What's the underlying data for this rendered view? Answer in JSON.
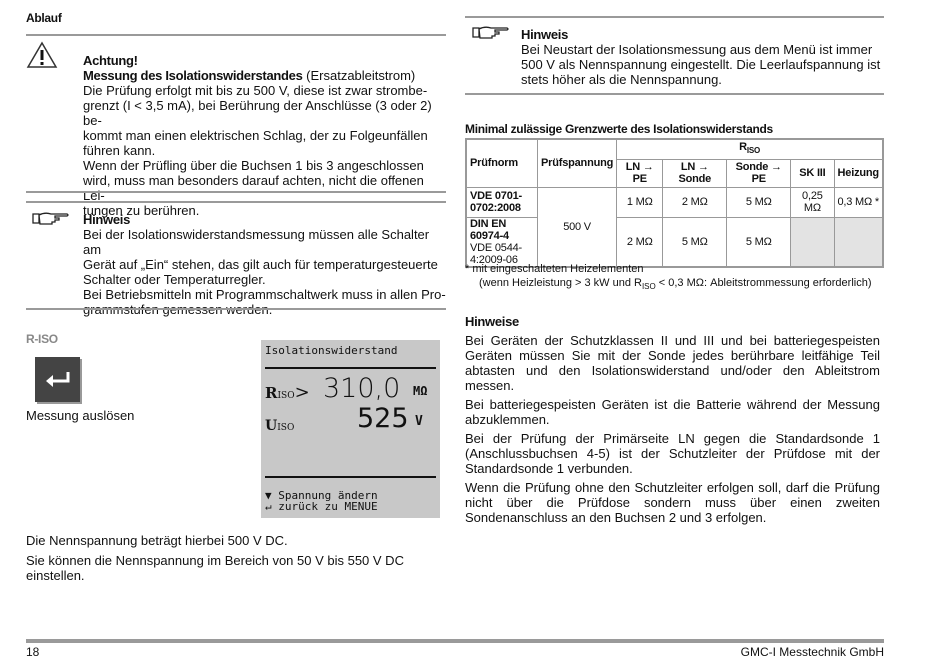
{
  "section_title": "Ablauf",
  "warning": {
    "icon": "warning-triangle-icon",
    "title": "Achtung!",
    "subtitle_bold": "Messung des Isolationswiderstandes",
    "subtitle_rest": " (Ersatzableitstrom)",
    "lines": [
      "Die Prüfung erfolgt mit bis zu 500 V, diese ist zwar strombe-",
      "grenzt (I < 3,5 mA), bei Berührung der Anschlüsse (3 oder 2) be-",
      "kommt man einen elektrischen Schlag, der zu Folgeunfällen",
      "führen kann.",
      "Wenn der Prüfling über die Buchsen 1 bis 3 angeschlossen",
      "wird, muss man besonders darauf achten, nicht die offenen Lei-",
      "tungen zu berühren."
    ]
  },
  "note1": {
    "icon": "pointing-hand-icon",
    "title": "Hinweis",
    "lines": [
      "Bei der Isolationswiderstandsmessung müssen alle Schalter am",
      "Gerät auf „Ein“ stehen, das gilt auch für temperaturgesteuerte",
      "Schalter oder Temperaturregler.",
      "Bei Betriebsmitteln mit Programmschaltwerk muss in allen Pro-",
      "grammstufen gemessen werden."
    ]
  },
  "riso": {
    "label": "R-ISO",
    "button_icon": "enter-arrow-icon",
    "button_caption": "Messung auslösen"
  },
  "lcd": {
    "title": "Isolationswiderstand",
    "r_label": "R",
    "r_sub": "ISO",
    "r_cmp": ">",
    "r_value": "310,0",
    "r_unit": "MΩ",
    "u_label": "U",
    "u_sub": "ISO",
    "u_value": "525",
    "u_unit": "V",
    "hint1_icon": "▼",
    "hint1": "Spannung ändern",
    "hint2_icon": "↵",
    "hint2": "zurück zu MENUE"
  },
  "bottom_text": [
    "Die Nennspannung beträgt hierbei 500 V DC.",
    "Sie können die Nennspannung im Bereich von 50 V bis 550 V DC",
    "einstellen."
  ],
  "note2": {
    "icon": "pointing-hand-icon",
    "title": "Hinweis",
    "lines": [
      "Bei Neustart der Isolationsmessung aus dem Menü ist immer",
      "500 V als Nennspannung eingestellt. Die Leerlaufspannung ist",
      "stets höher als die Nennspannung."
    ]
  },
  "table": {
    "title": "Minimal zulässige Grenzwerte des Isolationswiderstands",
    "h_norm": "Prüfnorm",
    "h_spannung": "Prüfspannung",
    "h_riso": "R",
    "h_riso_sub": "ISO",
    "cols": [
      "LN → PE",
      "LN → Sonde",
      "Sonde → PE",
      "SK III",
      "Heizung"
    ],
    "row1": {
      "norm": "VDE 0701-0702:2008",
      "values": [
        "1 MΩ",
        "2 MΩ",
        "5 MΩ",
        "0,25 MΩ",
        "0,3 MΩ *"
      ]
    },
    "spannung": "500 V",
    "row2": {
      "norm_bold": "DIN EN 60974-4",
      "norm_rest": "VDE 0544-4:2009-06",
      "values": [
        "2 MΩ",
        "5 MΩ",
        "5 MΩ"
      ]
    },
    "foot1": "*   mit eingeschalteten Heizelementen",
    "foot2a": "(wenn Heizleistung > 3 kW und R",
    "foot2sub": "ISO",
    "foot2b": " < 0,3 MΩ: Ableitstrommessung erforderlich)"
  },
  "hinweise": {
    "title": "Hinweise",
    "paras": [
      "Bei Geräten der Schutzklassen II und III und bei batteriegespeisten Geräten müssen Sie mit der Sonde jedes berührbare leitfähige Teil abtasten und den Isolationswiderstand und/oder den Ableitstrom messen.",
      "Bei batteriegespeisten Geräten ist die Batterie während der Messung abzuklemmen.",
      "Bei der Prüfung der Primärseite LN gegen die Standardsonde 1 (Anschlussbuchsen 4-5) ist der Schutzleiter der Prüfdose mit der Standardsonde 1 verbunden.",
      "Wenn die Prüfung ohne den Schutzleiter erfolgen soll, darf die Prüfung nicht über die Prüfdose sondern muss über einen zweiten Sondenanschluss an den Buchsen 2 und 3 erfolgen."
    ]
  },
  "footer": {
    "page": "18",
    "company": "GMC-I Messtechnik GmbH"
  }
}
